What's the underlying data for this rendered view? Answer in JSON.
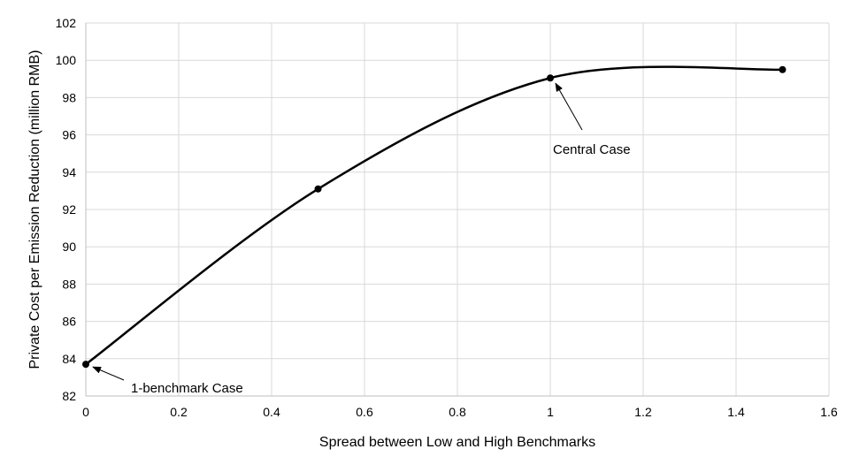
{
  "chart_data": {
    "type": "line",
    "title": "",
    "xlabel": "Spread between Low and High Benchmarks",
    "ylabel": "Private Cost per Emission Reduction (million RMB)",
    "xlim": [
      0,
      1.6
    ],
    "ylim": [
      82,
      102
    ],
    "x_ticks": [
      "0",
      "0.2",
      "0.4",
      "0.6",
      "0.8",
      "1",
      "1.2",
      "1.4",
      "1.6"
    ],
    "y_ticks": [
      "82",
      "84",
      "86",
      "88",
      "90",
      "92",
      "94",
      "96",
      "98",
      "100",
      "102"
    ],
    "grid": true,
    "legend": "none",
    "smooth": true,
    "line_color": "#000000",
    "series": [
      {
        "x": [
          0,
          0.5,
          1,
          1.5
        ],
        "y": [
          83.7,
          93.1,
          99.05,
          99.5
        ]
      }
    ],
    "annotations": [
      {
        "text": "1-benchmark Case",
        "x": 0,
        "y": 83.7
      },
      {
        "text": "Central Case",
        "x": 1,
        "y": 99.05
      }
    ]
  }
}
